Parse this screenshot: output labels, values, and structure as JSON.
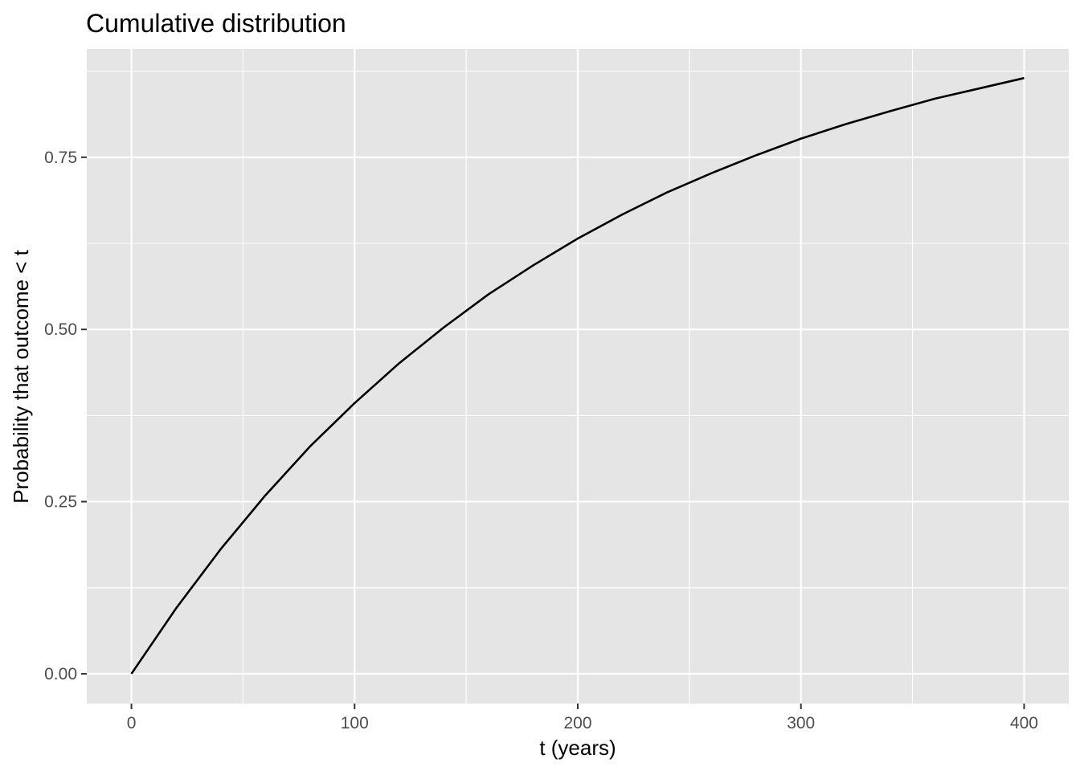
{
  "chart_data": {
    "type": "line",
    "title": "Cumulative distribution",
    "xlabel": "t (years)",
    "ylabel": "Probability that outcome < t",
    "xlim": [
      -20,
      420
    ],
    "ylim": [
      -0.0432,
      0.9072
    ],
    "x_ticks": [
      0,
      100,
      200,
      300,
      400
    ],
    "x_tick_labels": [
      "0",
      "100",
      "200",
      "300",
      "400"
    ],
    "y_ticks": [
      0.0,
      0.25,
      0.5,
      0.75
    ],
    "y_tick_labels": [
      "0.00",
      "0.25",
      "0.50",
      "0.75"
    ],
    "grid": true,
    "background": "#e5e5e5",
    "grid_color": "#ffffff",
    "line_color": "#000000",
    "series": [
      {
        "x": [
          0,
          20,
          40,
          60,
          80,
          100,
          120,
          140,
          160,
          180,
          200,
          220,
          240,
          260,
          280,
          300,
          320,
          340,
          360,
          380,
          400
        ],
        "values": [
          0.0,
          0.095,
          0.181,
          0.259,
          0.33,
          0.393,
          0.451,
          0.503,
          0.551,
          0.593,
          0.632,
          0.667,
          0.699,
          0.727,
          0.753,
          0.777,
          0.798,
          0.817,
          0.835,
          0.85,
          0.865
        ]
      }
    ]
  }
}
